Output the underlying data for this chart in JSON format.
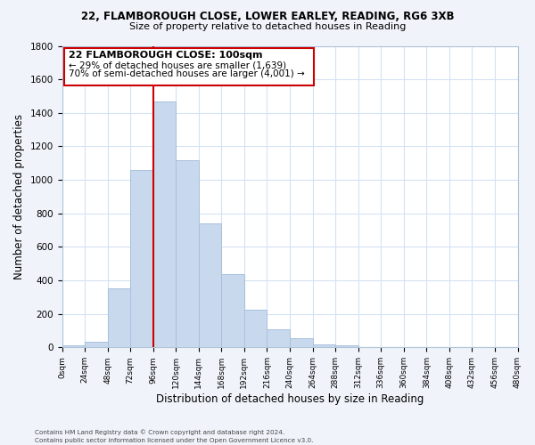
{
  "title_line1": "22, FLAMBOROUGH CLOSE, LOWER EARLEY, READING, RG6 3XB",
  "title_line2": "Size of property relative to detached houses in Reading",
  "xlabel": "Distribution of detached houses by size in Reading",
  "ylabel": "Number of detached properties",
  "bar_color": "#c8d9ee",
  "bar_edge_color": "#a8c0de",
  "grid_color": "#d4e2f4",
  "annotation_box_color": "#ffffff",
  "annotation_box_edge": "#cc0000",
  "vline_color": "#cc0000",
  "bin_edges": [
    0,
    24,
    48,
    72,
    96,
    120,
    144,
    168,
    192,
    216,
    240,
    264,
    288,
    312,
    336,
    360,
    384,
    408,
    432,
    456,
    480
  ],
  "bin_labels": [
    "0sqm",
    "24sqm",
    "48sqm",
    "72sqm",
    "96sqm",
    "120sqm",
    "144sqm",
    "168sqm",
    "192sqm",
    "216sqm",
    "240sqm",
    "264sqm",
    "288sqm",
    "312sqm",
    "336sqm",
    "360sqm",
    "384sqm",
    "408sqm",
    "432sqm",
    "456sqm",
    "480sqm"
  ],
  "bar_heights": [
    15,
    35,
    355,
    1060,
    1470,
    1115,
    740,
    440,
    225,
    110,
    55,
    20,
    10,
    0,
    0,
    0,
    0,
    0,
    0,
    0
  ],
  "vline_x": 96,
  "annotation_text_line1": "22 FLAMBOROUGH CLOSE: 100sqm",
  "annotation_text_line2": "← 29% of detached houses are smaller (1,639)",
  "annotation_text_line3": "70% of semi-detached houses are larger (4,001) →",
  "ylim": [
    0,
    1800
  ],
  "yticks": [
    0,
    200,
    400,
    600,
    800,
    1000,
    1200,
    1400,
    1600,
    1800
  ],
  "footnote_line1": "Contains HM Land Registry data © Crown copyright and database right 2024.",
  "footnote_line2": "Contains public sector information licensed under the Open Government Licence v3.0.",
  "plot_bg_color": "#ffffff",
  "fig_bg_color": "#f0f4fa"
}
